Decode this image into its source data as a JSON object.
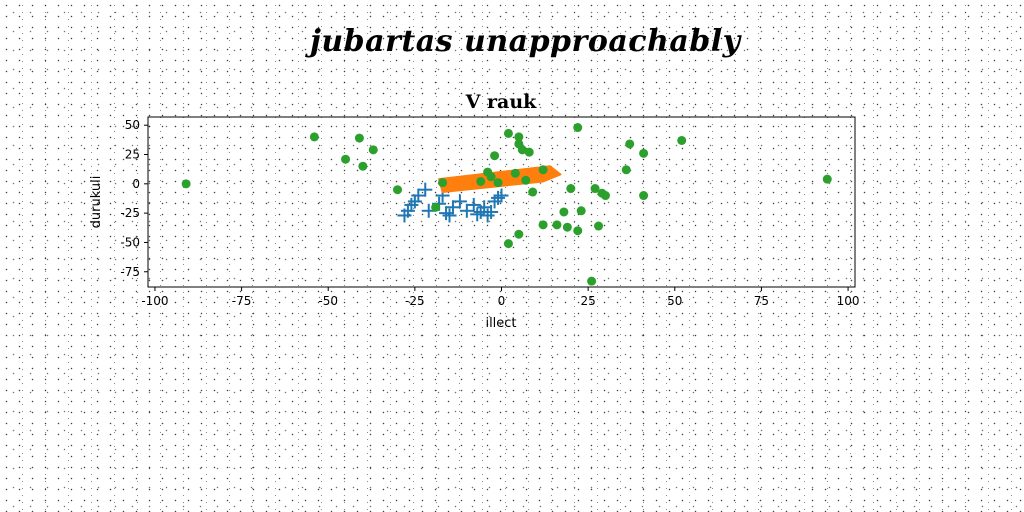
{
  "page_title": "jubartas unapproachably",
  "chart_data": {
    "type": "scatter",
    "title": "V rauk",
    "xlabel": "illect",
    "ylabel": "durukuli",
    "xlim": [
      -102,
      102
    ],
    "ylim": [
      -88,
      57
    ],
    "xticks": [
      -100,
      -75,
      -50,
      -25,
      0,
      25,
      50,
      75,
      100
    ],
    "yticks": [
      50,
      25,
      0,
      -25,
      -50,
      -75
    ],
    "grid": false,
    "colors": {
      "plus": "#1f77b4",
      "band": "#ff7f0e",
      "dots": "#2ca02c"
    },
    "series": [
      {
        "marker": "plus",
        "points": [
          [
            -28,
            -27
          ],
          [
            -27,
            -23
          ],
          [
            -26,
            -18
          ],
          [
            -25,
            -15
          ],
          [
            -24,
            -10
          ],
          [
            -22,
            -5
          ],
          [
            -21,
            -23
          ],
          [
            -18,
            -17
          ],
          [
            -17,
            -10
          ],
          [
            -16,
            -25
          ],
          [
            -15,
            -27
          ],
          [
            -14,
            -20
          ],
          [
            -12,
            -15
          ],
          [
            -10,
            -23
          ],
          [
            -8,
            -18
          ],
          [
            -7,
            -26
          ],
          [
            -6,
            -24
          ],
          [
            -5,
            -20
          ],
          [
            -4,
            -27
          ],
          [
            -3,
            -24
          ],
          [
            -2,
            -15
          ],
          [
            -1,
            -12
          ],
          [
            0,
            -10
          ]
        ]
      },
      {
        "marker": "band",
        "polygon": [
          [
            -18,
            4
          ],
          [
            14,
            15
          ],
          [
            17,
            8
          ],
          [
            12,
            2
          ],
          [
            -17,
            -7
          ]
        ]
      },
      {
        "marker": "dot",
        "points": [
          [
            -91,
            0
          ],
          [
            -54,
            40
          ],
          [
            -45,
            21
          ],
          [
            -41,
            39
          ],
          [
            -40,
            15
          ],
          [
            -37,
            29
          ],
          [
            -30,
            -5
          ],
          [
            -19,
            -20
          ],
          [
            -17,
            1
          ],
          [
            -6,
            2
          ],
          [
            -4,
            10
          ],
          [
            -3,
            6
          ],
          [
            -2,
            24
          ],
          [
            -1,
            1
          ],
          [
            2,
            43
          ],
          [
            4,
            9
          ],
          [
            5,
            40
          ],
          [
            5,
            34
          ],
          [
            6,
            29
          ],
          [
            7,
            3
          ],
          [
            8,
            27
          ],
          [
            9,
            -7
          ],
          [
            12,
            -35
          ],
          [
            12,
            12
          ],
          [
            16,
            -35
          ],
          [
            18,
            -24
          ],
          [
            19,
            -37
          ],
          [
            20,
            -4
          ],
          [
            22,
            48
          ],
          [
            22,
            -40
          ],
          [
            23,
            -23
          ],
          [
            26,
            -83
          ],
          [
            27,
            -4
          ],
          [
            28,
            -36
          ],
          [
            29,
            -8
          ],
          [
            30,
            -10
          ],
          [
            36,
            12
          ],
          [
            37,
            34
          ],
          [
            41,
            26
          ],
          [
            41,
            -10
          ],
          [
            52,
            37
          ],
          [
            94,
            4
          ],
          [
            2,
            -51
          ],
          [
            5,
            -43
          ]
        ]
      }
    ]
  }
}
